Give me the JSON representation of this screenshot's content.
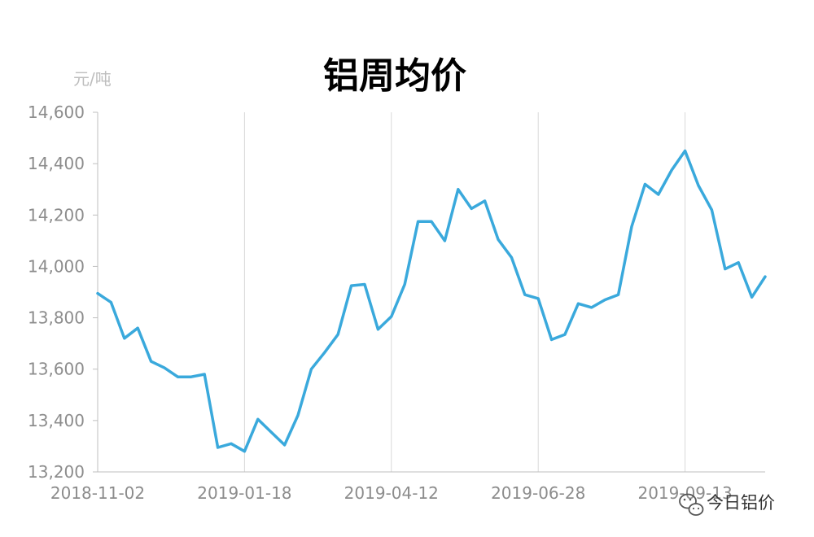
{
  "chart_data": {
    "type": "line",
    "title": "铝周均价",
    "ylabel": "元/吨",
    "xlabel": "",
    "ylim": [
      13200,
      14600
    ],
    "yticks": [
      13200,
      13400,
      13600,
      13800,
      14000,
      14200,
      14400,
      14600
    ],
    "ytick_labels": [
      "13,200",
      "13,400",
      "13,600",
      "13,800",
      "14,000",
      "14,200",
      "14,400",
      "14,600"
    ],
    "xtick_labels": [
      "2018-11-02",
      "2019-01-18",
      "2019-04-12",
      "2019-06-28",
      "2019-09-13"
    ],
    "xtick_indices": [
      0,
      11,
      22,
      33,
      44
    ],
    "grid": "vertical",
    "legend": "none",
    "series": [
      {
        "color": "#3aa9dc",
        "values": [
          13895,
          13860,
          13720,
          13760,
          13630,
          13605,
          13570,
          13570,
          13580,
          13295,
          13310,
          13280,
          13405,
          13355,
          13305,
          13420,
          13600,
          13665,
          13735,
          13925,
          13930,
          13755,
          13805,
          13930,
          14175,
          14175,
          14100,
          14300,
          14225,
          14255,
          14105,
          14035,
          13890,
          13875,
          13715,
          13735,
          13855,
          13840,
          13870,
          13890,
          14155,
          14320,
          14280,
          14375,
          14450,
          14315,
          14220,
          13990,
          14015,
          13880,
          13960
        ]
      }
    ]
  },
  "watermark": {
    "text": "今日铝价",
    "icon": "wechat-icon"
  }
}
